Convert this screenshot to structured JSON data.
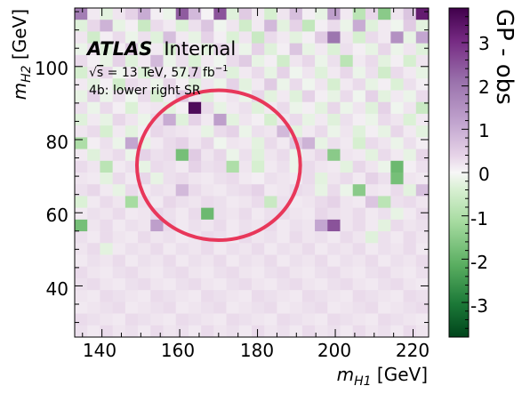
{
  "chart_data": {
    "type": "heatmap",
    "experiment": "ATLAS",
    "status": "Internal",
    "energy_label": "√s = 13 TeV, 57.7 fb⁻¹",
    "energy_sqrt": "√",
    "energy_s": "s",
    "energy_rest": " = 13 TeV, 57.7 fb",
    "energy_exp": "−1",
    "region_label": "4b: lower right SR",
    "xlabel": "m_H1 [GeV]",
    "xlabel_var": "m",
    "xlabel_sub": "H1",
    "xlabel_unit": " [GeV]",
    "ylabel": "m_H2 [GeV]",
    "ylabel_var": "m",
    "ylabel_sub": "H2",
    "ylabel_unit": " [GeV]",
    "xlim": [
      133,
      224
    ],
    "ylim": [
      26,
      116
    ],
    "x_ticks": [
      140,
      160,
      180,
      200,
      220
    ],
    "x_tick_labels": [
      "140",
      "160",
      "180",
      "200",
      "220"
    ],
    "y_ticks": [
      40,
      60,
      80,
      100
    ],
    "y_tick_labels": [
      "40",
      "60",
      "80",
      "100"
    ],
    "bins_x": 28,
    "bins_y": 28,
    "colorbar_label": "GP - obs",
    "colorbar_range": [
      -3.8,
      3.8
    ],
    "colorbar_ticks": [
      -3,
      -2,
      -1,
      0,
      1,
      2,
      3
    ],
    "colorbar_tick_labels": [
      "-3",
      "-2",
      "-1",
      "0",
      "1",
      "2",
      "3"
    ],
    "colormap": [
      "#00441b",
      "#1b7837",
      "#5aae61",
      "#a6dba0",
      "#d9f0d3",
      "#f7f7f7",
      "#e7d4e8",
      "#c2a5cf",
      "#9970ab",
      "#762a83",
      "#40004b"
    ],
    "signal_region_color": "#e8375a",
    "signal_region_center": [
      170,
      73
    ],
    "signal_region_rx": 21,
    "signal_region_ry": 20.5,
    "grid": false,
    "cells": [
      [
        2.1,
        0.3,
        -0.5,
        0.4,
        0.8,
        1.4,
        0.2,
        -0.3,
        2.5,
        1.2,
        0.1,
        2.6,
        -0.6,
        0.9,
        0.3,
        -0.8,
        0.4,
        1.1,
        0.2,
        -0.4,
        1.6,
        0.3,
        -1.2,
        0.7,
        -1.8,
        0.4,
        1.0,
        3.3
      ],
      [
        -0.6,
        0.7,
        1.3,
        -0.4,
        0.2,
        -1.0,
        0.6,
        0.3,
        -0.7,
        0.5,
        1.0,
        -0.2,
        0.4,
        -0.9,
        0.3,
        1.2,
        -0.5,
        0.8,
        -1.1,
        0.2,
        0.6,
        -0.3,
        1.4,
        -0.6,
        0.3,
        -0.2,
        0.9,
        -0.5
      ],
      [
        0.4,
        -0.9,
        0.2,
        0.6,
        -0.3,
        0.5,
        -0.6,
        1.1,
        0.3,
        -0.4,
        0.8,
        0.2,
        -0.7,
        0.4,
        -1.0,
        0.6,
        0.3,
        -0.5,
        0.2,
        0.9,
        2.2,
        0.4,
        -0.8,
        0.6,
        0.3,
        1.8,
        -0.4,
        1.5
      ],
      [
        -0.3,
        0.5,
        -0.6,
        0.2,
        0.9,
        -0.4,
        0.3,
        -0.8,
        0.6,
        0.2,
        -0.5,
        0.7,
        0.4,
        -0.3,
        0.8,
        -0.6,
        0.2,
        1.0,
        -0.4,
        0.3,
        -0.7,
        0.5,
        0.2,
        -0.4,
        0.7,
        -0.3,
        0.4,
        -0.6
      ],
      [
        0.6,
        0.2,
        -0.4,
        0.8,
        -0.6,
        0.3,
        1.2,
        -0.3,
        0.5,
        -0.7,
        0.3,
        -0.2,
        0.6,
        0.9,
        -0.4,
        0.2,
        -0.9,
        0.4,
        0.7,
        -0.3,
        0.5,
        -1.2,
        0.3,
        0.6,
        -0.5,
        0.2,
        -0.8,
        0.4
      ],
      [
        -0.8,
        0.4,
        0.7,
        -0.2,
        0.3,
        -0.7,
        0.5,
        0.2,
        -0.4,
        0.8,
        -0.3,
        0.5,
        -0.6,
        0.3,
        0.6,
        -0.4,
        0.8,
        -0.2,
        0.4,
        -0.6,
        0.3,
        0.7,
        -0.3,
        0.5,
        -0.9,
        0.6,
        0.3,
        -0.4
      ],
      [
        0.3,
        -0.5,
        0.2,
        -0.9,
        0.6,
        0.4,
        -0.3,
        0.7,
        0.2,
        -0.6,
        0.4,
        -0.3,
        0.8,
        -0.5,
        0.3,
        0.9,
        -0.3,
        0.6,
        -0.2,
        0.4,
        -0.8,
        0.3,
        0.6,
        -0.4,
        0.2,
        -0.7,
        0.5,
        0.2
      ],
      [
        -0.4,
        0.8,
        -0.3,
        0.5,
        -0.2,
        0.6,
        -0.8,
        0.3,
        0.9,
        0.4,
        -0.6,
        0.2,
        0.4,
        -0.3,
        0.7,
        -0.5,
        0.3,
        -0.6,
        0.8,
        0.2,
        -0.4,
        0.6,
        -0.2,
        0.8,
        -0.5,
        0.3,
        -0.3,
        0.6
      ],
      [
        0.5,
        -0.3,
        0.6,
        0.2,
        -0.7,
        0.3,
        0.4,
        -0.5,
        0.2,
        3.6,
        0.6,
        -0.4,
        0.3,
        0.5,
        -0.6,
        0.3,
        0.6,
        -0.3,
        0.2,
        -0.5,
        0.7,
        -0.3,
        0.4,
        -0.6,
        0.8,
        -0.2,
        0.4,
        -1.0
      ],
      [
        -0.6,
        0.3,
        -0.4,
        0.7,
        0.4,
        -0.3,
        0.6,
        1.4,
        -0.6,
        0.8,
        0.3,
        1.6,
        -0.5,
        0.4,
        0.2,
        -0.8,
        0.4,
        0.6,
        -0.4,
        0.3,
        -0.6,
        0.5,
        0.2,
        -0.3,
        0.6,
        0.4,
        -0.7,
        0.3
      ],
      [
        0.4,
        0.6,
        -0.8,
        0.3,
        -0.5,
        0.2,
        0.7,
        0.5,
        0.4,
        0.3,
        -0.4,
        0.6,
        0.8,
        -0.3,
        0.5,
        0.4,
        1.2,
        -0.5,
        0.3,
        0.6,
        -0.3,
        0.4,
        -0.6,
        0.2,
        -0.4,
        0.7,
        0.3,
        -0.5
      ],
      [
        -1.4,
        0.2,
        0.5,
        -0.3,
        1.5,
        -0.4,
        0.3,
        0.6,
        0.8,
        0.4,
        0.7,
        -0.2,
        0.4,
        0.3,
        -0.5,
        0.6,
        0.3,
        0.9,
        1.3,
        -0.4,
        0.5,
        0.3,
        -0.8,
        0.6,
        0.4,
        -0.3,
        0.5,
        0.2
      ],
      [
        0.3,
        -0.6,
        0.4,
        0.6,
        -0.3,
        0.8,
        0.5,
        0.6,
        -2.0,
        0.9,
        0.4,
        0.7,
        -0.3,
        0.5,
        -0.6,
        0.4,
        0.6,
        -0.3,
        0.4,
        0.7,
        -1.8,
        0.4,
        0.3,
        -0.5,
        0.6,
        0.3,
        -0.4,
        0.7
      ],
      [
        0.6,
        0.4,
        -1.2,
        0.3,
        0.5,
        -0.4,
        0.6,
        0.5,
        0.3,
        0.8,
        0.5,
        0.6,
        -1.4,
        0.4,
        -0.8,
        0.3,
        0.5,
        -0.3,
        0.6,
        0.4,
        0.3,
        -0.5,
        0.7,
        0.4,
        -0.3,
        -2.1,
        0.2,
        0.5
      ],
      [
        0.4,
        0.3,
        -0.5,
        0.6,
        0.3,
        0.7,
        -0.4,
        0.5,
        0.6,
        0.4,
        0.3,
        0.5,
        0.6,
        0.3,
        0.2,
        0.5,
        0.4,
        0.3,
        0.6,
        -0.5,
        0.4,
        0.6,
        0.3,
        0.8,
        0.5,
        -2.0,
        0.4,
        0.3
      ],
      [
        0.5,
        0.7,
        0.3,
        -0.4,
        0.6,
        0.3,
        0.5,
        0.4,
        1.2,
        0.6,
        0.4,
        0.3,
        0.5,
        0.6,
        0.8,
        0.3,
        0.4,
        0.6,
        0.5,
        -0.4,
        0.6,
        -0.3,
        -1.8,
        0.4,
        0.3,
        0.6,
        -0.5,
        1.1
      ],
      [
        -0.7,
        0.3,
        0.6,
        0.4,
        -1.5,
        0.5,
        0.3,
        0.7,
        0.5,
        0.4,
        0.6,
        0.5,
        0.3,
        0.4,
        0.6,
        -1.0,
        0.5,
        0.3,
        0.4,
        0.6,
        0.8,
        0.4,
        0.3,
        1.0,
        -1.2,
        0.5,
        0.6,
        0.4
      ],
      [
        0.3,
        0.5,
        0.4,
        0.6,
        0.3,
        0.4,
        0.7,
        0.5,
        0.3,
        0.6,
        -2.1,
        0.5,
        0.4,
        0.6,
        0.3,
        0.5,
        0.6,
        0.4,
        0.3,
        0.7,
        0.5,
        0.4,
        0.6,
        0.3,
        0.5,
        -0.4,
        0.3,
        0.6
      ],
      [
        -2.0,
        0.4,
        0.6,
        0.3,
        0.5,
        0.4,
        1.6,
        0.6,
        0.3,
        0.5,
        0.4,
        0.6,
        0.3,
        0.5,
        0.4,
        0.6,
        0.3,
        0.5,
        0.4,
        1.5,
        2.6,
        0.4,
        0.6,
        0.3,
        -0.5,
        0.6,
        0.4,
        0.5
      ],
      [
        0.5,
        0.3,
        0.6,
        0.4,
        0.3,
        0.6,
        0.4,
        0.5,
        0.3,
        0.4,
        0.6,
        0.5,
        0.3,
        0.6,
        0.4,
        0.5,
        0.3,
        0.6,
        0.4,
        0.5,
        0.3,
        0.6,
        0.4,
        -0.6,
        0.5,
        0.3,
        0.6,
        0.4
      ],
      [
        0.4,
        0.6,
        -0.5,
        0.3,
        0.5,
        0.4,
        0.6,
        0.3,
        0.5,
        0.4,
        0.6,
        0.3,
        0.5,
        0.4,
        0.6,
        0.3,
        0.5,
        0.4,
        0.6,
        0.3,
        0.5,
        0.4,
        0.6,
        0.3,
        0.5,
        0.4,
        0.6,
        0.3
      ],
      [
        0.3,
        0.5,
        0.4,
        0.6,
        0.3,
        0.5,
        0.4,
        0.6,
        0.3,
        0.5,
        0.4,
        0.6,
        0.3,
        0.5,
        0.4,
        0.6,
        0.3,
        0.5,
        0.4,
        0.6,
        0.3,
        0.5,
        0.4,
        0.6,
        0.3,
        0.5,
        0.4,
        0.6
      ],
      [
        0.6,
        0.4,
        0.3,
        0.5,
        0.6,
        0.4,
        0.3,
        0.5,
        0.6,
        0.4,
        0.3,
        0.5,
        0.6,
        0.4,
        0.3,
        0.5,
        0.6,
        0.4,
        0.3,
        0.5,
        0.6,
        0.4,
        0.3,
        0.5,
        0.6,
        0.4,
        0.3,
        0.5
      ],
      [
        0.5,
        0.6,
        0.4,
        0.3,
        0.5,
        0.6,
        0.4,
        0.3,
        0.5,
        0.6,
        0.4,
        0.3,
        0.5,
        0.6,
        0.4,
        0.3,
        0.5,
        0.6,
        0.4,
        0.3,
        0.5,
        0.6,
        0.4,
        0.3,
        0.5,
        0.6,
        0.4,
        0.3
      ],
      [
        0.4,
        0.3,
        0.6,
        0.5,
        0.4,
        0.3,
        0.6,
        0.5,
        0.4,
        0.3,
        0.6,
        0.5,
        0.4,
        0.3,
        0.6,
        0.5,
        0.4,
        0.3,
        0.6,
        0.5,
        0.4,
        0.3,
        0.6,
        0.5,
        0.4,
        0.3,
        0.6,
        0.5
      ],
      [
        0.3,
        0.4,
        0.5,
        0.6,
        0.3,
        0.4,
        0.5,
        0.6,
        0.3,
        0.4,
        0.5,
        0.6,
        0.3,
        0.4,
        0.5,
        0.6,
        0.3,
        0.4,
        0.5,
        0.6,
        0.3,
        0.4,
        0.5,
        0.6,
        0.3,
        0.4,
        0.5,
        0.6
      ],
      [
        0.6,
        0.5,
        0.4,
        0.3,
        0.6,
        0.5,
        0.4,
        0.3,
        0.6,
        0.5,
        0.4,
        0.3,
        0.6,
        0.5,
        0.4,
        0.3,
        0.6,
        0.5,
        0.4,
        0.3,
        0.6,
        0.5,
        0.4,
        0.3,
        0.6,
        0.5,
        0.4,
        0.3
      ],
      [
        0.5,
        0.3,
        0.6,
        0.4,
        0.5,
        0.3,
        0.6,
        0.4,
        0.5,
        0.3,
        0.6,
        0.4,
        0.5,
        0.3,
        0.6,
        0.4,
        0.5,
        0.3,
        0.6,
        0.4,
        0.5,
        0.3,
        0.6,
        0.4,
        0.5,
        0.3,
        0.6,
        0.4
      ]
    ]
  }
}
